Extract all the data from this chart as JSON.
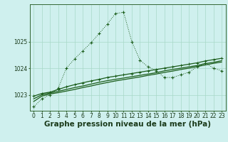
{
  "xlabel": "Graphe pression niveau de la mer (hPa)",
  "bg_color": "#cff0ee",
  "grid_color": "#a8d8c8",
  "line_color": "#1a5c1a",
  "hours": [
    0,
    1,
    2,
    3,
    4,
    5,
    6,
    7,
    8,
    9,
    10,
    11,
    12,
    13,
    14,
    15,
    16,
    17,
    18,
    19,
    20,
    21,
    22,
    23
  ],
  "line1": [
    1022.55,
    1022.85,
    1023.0,
    1023.25,
    1024.0,
    1024.35,
    1024.65,
    1024.95,
    1025.3,
    1025.65,
    1026.05,
    1026.1,
    1025.0,
    1024.3,
    1024.05,
    1023.9,
    1023.65,
    1023.65,
    1023.75,
    1023.85,
    1024.05,
    1024.2,
    1024.0,
    1023.9
  ],
  "line2": [
    1022.95,
    1023.05,
    1023.1,
    1023.2,
    1023.3,
    1023.38,
    1023.45,
    1023.52,
    1023.58,
    1023.65,
    1023.7,
    1023.75,
    1023.8,
    1023.85,
    1023.9,
    1023.95,
    1024.0,
    1024.05,
    1024.1,
    1024.15,
    1024.2,
    1024.27,
    1024.32,
    1024.37
  ],
  "line3": [
    1022.85,
    1023.0,
    1023.07,
    1023.13,
    1023.2,
    1023.27,
    1023.33,
    1023.4,
    1023.47,
    1023.53,
    1023.58,
    1023.63,
    1023.68,
    1023.73,
    1023.78,
    1023.83,
    1023.9,
    1023.95,
    1024.0,
    1024.05,
    1024.1,
    1024.17,
    1024.22,
    1024.28
  ],
  "line4": [
    1022.75,
    1022.95,
    1023.03,
    1023.08,
    1023.14,
    1023.2,
    1023.27,
    1023.33,
    1023.4,
    1023.46,
    1023.52,
    1023.57,
    1023.62,
    1023.67,
    1023.73,
    1023.78,
    1023.84,
    1023.89,
    1023.95,
    1024.0,
    1024.06,
    1024.12,
    1024.18,
    1024.23
  ],
  "ylim_min": 1022.4,
  "ylim_max": 1026.4,
  "yticks": [
    1023,
    1024,
    1025
  ],
  "xticks": [
    0,
    1,
    2,
    3,
    4,
    5,
    6,
    7,
    8,
    9,
    10,
    11,
    12,
    13,
    14,
    15,
    16,
    17,
    18,
    19,
    20,
    21,
    22,
    23
  ],
  "xlabel_fontsize": 7.5,
  "tick_fontsize": 5.5
}
